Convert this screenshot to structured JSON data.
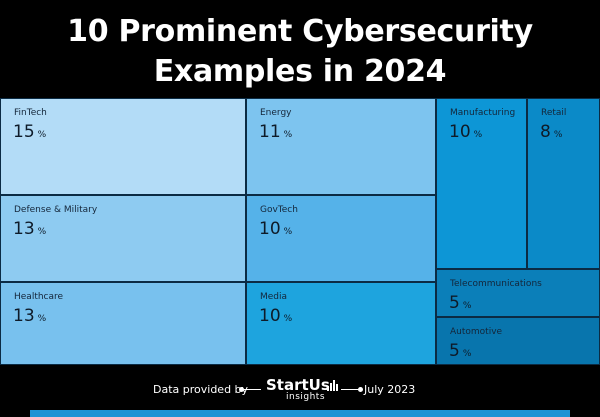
{
  "title": {
    "line1": "10 Prominent Cybersecurity",
    "line2": "Examples in 2024"
  },
  "chart_data": {
    "type": "treemap",
    "unit": "%",
    "items": [
      {
        "name": "FinTech",
        "value": 15,
        "color": "#b3dcf7"
      },
      {
        "name": "Defense & Military",
        "value": 13,
        "color": "#8ecbf1"
      },
      {
        "name": "Healthcare",
        "value": 13,
        "color": "#78c1ee"
      },
      {
        "name": "Energy",
        "value": 11,
        "color": "#7dc4ef"
      },
      {
        "name": "GovTech",
        "value": 10,
        "color": "#55b2e9"
      },
      {
        "name": "Media",
        "value": 10,
        "color": "#1ea4de"
      },
      {
        "name": "Manufacturing",
        "value": 10,
        "color": "#0d96d6"
      },
      {
        "name": "Retail",
        "value": 8,
        "color": "#0b8ac8"
      },
      {
        "name": "Telecommunications",
        "value": 5,
        "color": "#0b7fb9"
      },
      {
        "name": "Automotive",
        "value": 5,
        "color": "#0875ad"
      }
    ]
  },
  "footer": {
    "provided_by": "Data provided by",
    "brand": "StartUs",
    "brand_sub": "insights",
    "date": "July 2023"
  },
  "colors": {
    "background": "#000000",
    "accent_bar": "#1f93d4"
  }
}
